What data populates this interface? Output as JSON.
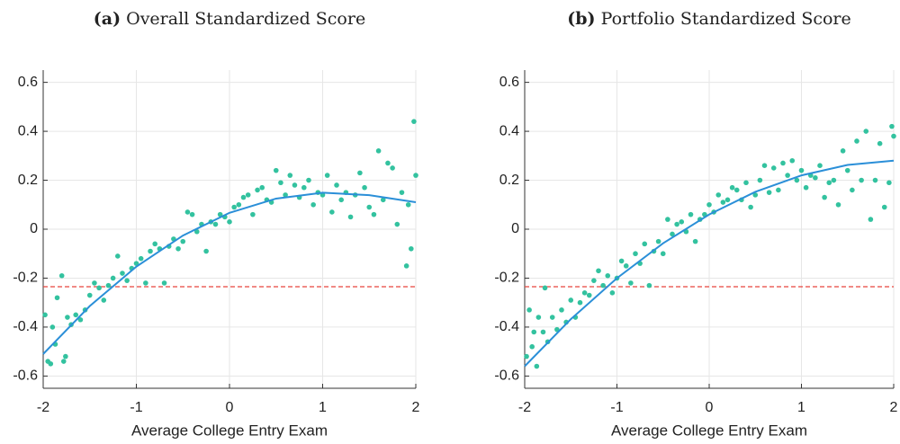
{
  "chart_data": [
    {
      "type": "scatter",
      "panel_label": "(a)",
      "title": "Overall Standardized Score",
      "xlabel": "Average College Entry Exam",
      "xlim": [
        -2,
        2
      ],
      "ylim": [
        -0.65,
        0.65
      ],
      "xticks": [
        -2,
        -1,
        0,
        1,
        2
      ],
      "yticks": [
        -0.6,
        -0.4,
        -0.2,
        0,
        0.2,
        0.4,
        0.6
      ],
      "grid": true,
      "points": {
        "color": "#33c29f",
        "x": [
          -1.98,
          -1.95,
          -1.92,
          -1.9,
          -1.87,
          -1.85,
          -1.8,
          -1.78,
          -1.76,
          -1.74,
          -1.7,
          -1.65,
          -1.6,
          -1.55,
          -1.5,
          -1.45,
          -1.4,
          -1.35,
          -1.3,
          -1.25,
          -1.2,
          -1.15,
          -1.1,
          -1.05,
          -1.0,
          -0.95,
          -0.9,
          -0.85,
          -0.8,
          -0.75,
          -0.7,
          -0.65,
          -0.6,
          -0.55,
          -0.5,
          -0.45,
          -0.4,
          -0.35,
          -0.3,
          -0.25,
          -0.2,
          -0.15,
          -0.1,
          -0.05,
          0,
          0.05,
          0.1,
          0.15,
          0.2,
          0.25,
          0.3,
          0.35,
          0.4,
          0.45,
          0.5,
          0.55,
          0.6,
          0.65,
          0.7,
          0.75,
          0.8,
          0.85,
          0.9,
          0.95,
          1.0,
          1.05,
          1.1,
          1.15,
          1.2,
          1.25,
          1.3,
          1.35,
          1.4,
          1.45,
          1.5,
          1.55,
          1.6,
          1.65,
          1.7,
          1.75,
          1.8,
          1.85,
          1.9,
          1.92,
          1.95,
          1.98,
          2.0
        ],
        "y": [
          -0.35,
          -0.54,
          -0.55,
          -0.4,
          -0.47,
          -0.28,
          -0.19,
          -0.54,
          -0.52,
          -0.36,
          -0.39,
          -0.35,
          -0.37,
          -0.33,
          -0.27,
          -0.22,
          -0.24,
          -0.29,
          -0.23,
          -0.2,
          -0.11,
          -0.18,
          -0.21,
          -0.16,
          -0.14,
          -0.12,
          -0.22,
          -0.09,
          -0.06,
          -0.08,
          -0.22,
          -0.07,
          -0.04,
          -0.08,
          -0.05,
          0.07,
          0.06,
          -0.01,
          0.02,
          -0.09,
          0.03,
          0.02,
          0.06,
          0.05,
          0.03,
          0.09,
          0.1,
          0.13,
          0.14,
          0.06,
          0.16,
          0.17,
          0.12,
          0.11,
          0.24,
          0.19,
          0.14,
          0.22,
          0.18,
          0.13,
          0.17,
          0.2,
          0.1,
          0.15,
          0.14,
          0.22,
          0.07,
          0.18,
          0.12,
          0.15,
          0.05,
          0.14,
          0.23,
          0.17,
          0.09,
          0.06,
          0.32,
          0.12,
          0.27,
          0.25,
          0.02,
          0.15,
          -0.15,
          0.1,
          -0.08,
          0.44,
          0.22
        ]
      },
      "fit": {
        "color": "#2b8fd8",
        "x": [
          -2,
          -1.5,
          -1,
          -0.5,
          0,
          0.5,
          1,
          1.5,
          2
        ],
        "y": [
          -0.51,
          -0.314,
          -0.153,
          -0.026,
          0.067,
          0.125,
          0.149,
          0.139,
          0.11
        ]
      },
      "reference_line": {
        "y": -0.235,
        "color": "#e8453c"
      }
    },
    {
      "type": "scatter",
      "panel_label": "(b)",
      "title": "Portfolio Standardized Score",
      "xlabel": "Average College Entry Exam",
      "xlim": [
        -2,
        2
      ],
      "ylim": [
        -0.65,
        0.65
      ],
      "xticks": [
        -2,
        -1,
        0,
        1,
        2
      ],
      "yticks": [
        -0.6,
        -0.4,
        -0.2,
        0,
        0.2,
        0.4,
        0.6
      ],
      "grid": true,
      "points": {
        "color": "#33c29f",
        "x": [
          -1.98,
          -1.95,
          -1.92,
          -1.9,
          -1.87,
          -1.85,
          -1.8,
          -1.78,
          -1.75,
          -1.7,
          -1.65,
          -1.6,
          -1.55,
          -1.5,
          -1.45,
          -1.4,
          -1.35,
          -1.3,
          -1.25,
          -1.2,
          -1.15,
          -1.1,
          -1.05,
          -1.0,
          -0.95,
          -0.9,
          -0.85,
          -0.8,
          -0.75,
          -0.7,
          -0.65,
          -0.6,
          -0.55,
          -0.5,
          -0.45,
          -0.4,
          -0.35,
          -0.3,
          -0.25,
          -0.2,
          -0.15,
          -0.1,
          -0.05,
          0,
          0.05,
          0.1,
          0.15,
          0.2,
          0.25,
          0.3,
          0.35,
          0.4,
          0.45,
          0.5,
          0.55,
          0.6,
          0.65,
          0.7,
          0.75,
          0.8,
          0.85,
          0.9,
          0.95,
          1.0,
          1.05,
          1.1,
          1.15,
          1.2,
          1.25,
          1.3,
          1.35,
          1.4,
          1.45,
          1.5,
          1.55,
          1.6,
          1.65,
          1.7,
          1.75,
          1.8,
          1.85,
          1.9,
          1.95,
          1.98,
          2.0
        ],
        "y": [
          -0.52,
          -0.33,
          -0.48,
          -0.42,
          -0.56,
          -0.36,
          -0.42,
          -0.24,
          -0.46,
          -0.36,
          -0.41,
          -0.33,
          -0.38,
          -0.29,
          -0.36,
          -0.3,
          -0.26,
          -0.27,
          -0.21,
          -0.17,
          -0.23,
          -0.19,
          -0.26,
          -0.2,
          -0.13,
          -0.15,
          -0.22,
          -0.1,
          -0.14,
          -0.06,
          -0.23,
          -0.09,
          -0.05,
          -0.1,
          0.04,
          -0.02,
          0.02,
          0.03,
          -0.01,
          0.06,
          -0.05,
          0.04,
          0.06,
          0.1,
          0.07,
          0.14,
          0.11,
          0.12,
          0.17,
          0.16,
          0.12,
          0.19,
          0.09,
          0.14,
          0.2,
          0.26,
          0.15,
          0.25,
          0.16,
          0.27,
          0.22,
          0.28,
          0.2,
          0.24,
          0.17,
          0.22,
          0.21,
          0.26,
          0.13,
          0.19,
          0.2,
          0.1,
          0.32,
          0.24,
          0.16,
          0.36,
          0.2,
          0.4,
          0.04,
          0.2,
          0.35,
          0.09,
          0.19,
          0.42,
          0.38
        ]
      },
      "fit": {
        "color": "#2b8fd8",
        "x": [
          -2,
          -1.5,
          -1,
          -0.5,
          0,
          0.5,
          1,
          1.5,
          2
        ],
        "y": [
          -0.56,
          -0.3675,
          -0.2,
          -0.0575,
          0.06,
          0.1525,
          0.22,
          0.2625,
          0.28
        ]
      },
      "reference_line": {
        "y": -0.235,
        "color": "#e8453c"
      }
    }
  ]
}
